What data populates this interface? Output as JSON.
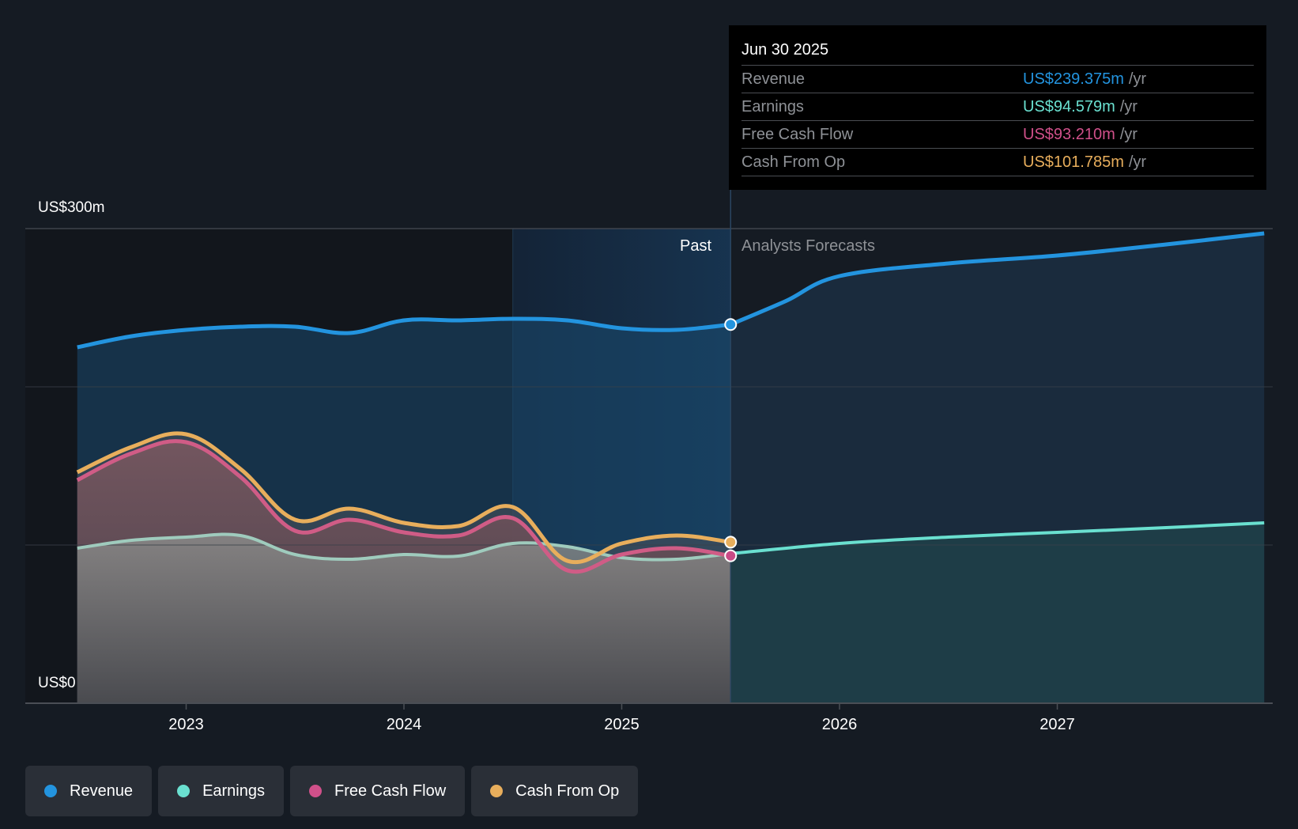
{
  "tooltip": {
    "date": "Jun 30 2025",
    "rows": [
      {
        "name": "Revenue",
        "value": "US$239.375m",
        "unit": "/yr",
        "color": "#2394df"
      },
      {
        "name": "Earnings",
        "value": "US$94.579m",
        "unit": "/yr",
        "color": "#6ae0d0"
      },
      {
        "name": "Free Cash Flow",
        "value": "US$93.210m",
        "unit": "/yr",
        "color": "#d0508a"
      },
      {
        "name": "Cash From Op",
        "value": "US$101.785m",
        "unit": "/yr",
        "color": "#e8ae5c"
      }
    ]
  },
  "regions": {
    "past": "Past",
    "forecast": "Analysts Forecasts"
  },
  "legend": [
    {
      "label": "Revenue",
      "color": "#2394df"
    },
    {
      "label": "Earnings",
      "color": "#6ae0d0"
    },
    {
      "label": "Free Cash Flow",
      "color": "#d0508a"
    },
    {
      "label": "Cash From Op",
      "color": "#e8ae5c"
    }
  ],
  "chart_data": {
    "type": "area",
    "title": "",
    "xlabel": "",
    "ylabel": "",
    "y_tick_labels": [
      "US$0",
      "US$300m"
    ],
    "ylim": [
      0,
      300
    ],
    "xlim": [
      2022.35,
      2027.95
    ],
    "x_ticks": [
      2023,
      2024,
      2025,
      2026,
      2027
    ],
    "x_tick_labels": [
      "2023",
      "2024",
      "2025",
      "2026",
      "2027"
    ],
    "gridlines_y": [
      0,
      100,
      200,
      300
    ],
    "past_forecast_split": 2025.5,
    "highlight_band_start": 2024.5,
    "series": [
      {
        "name": "Revenue",
        "color": "#2394df",
        "points": [
          [
            2022.5,
            225
          ],
          [
            2022.75,
            232
          ],
          [
            2023.0,
            236
          ],
          [
            2023.25,
            238
          ],
          [
            2023.5,
            238
          ],
          [
            2023.75,
            234
          ],
          [
            2024.0,
            242
          ],
          [
            2024.25,
            242
          ],
          [
            2024.5,
            243
          ],
          [
            2024.75,
            242
          ],
          [
            2025.0,
            237
          ],
          [
            2025.25,
            236
          ],
          [
            2025.5,
            239.375
          ]
        ],
        "forecast": [
          [
            2025.5,
            239.375
          ],
          [
            2025.75,
            254
          ],
          [
            2026.0,
            270
          ],
          [
            2026.5,
            278
          ],
          [
            2027.0,
            283
          ],
          [
            2027.5,
            290
          ],
          [
            2027.95,
            297
          ]
        ]
      },
      {
        "name": "Earnings",
        "color": "#6ae0d0",
        "points": [
          [
            2022.5,
            98
          ],
          [
            2022.75,
            103
          ],
          [
            2023.0,
            105
          ],
          [
            2023.25,
            106
          ],
          [
            2023.5,
            94
          ],
          [
            2023.75,
            91
          ],
          [
            2024.0,
            94
          ],
          [
            2024.25,
            93
          ],
          [
            2024.5,
            101
          ],
          [
            2024.75,
            99
          ],
          [
            2025.0,
            92
          ],
          [
            2025.25,
            91
          ],
          [
            2025.5,
            94.579
          ]
        ],
        "forecast": [
          [
            2025.5,
            94.579
          ],
          [
            2026.0,
            101
          ],
          [
            2026.5,
            105
          ],
          [
            2027.0,
            108
          ],
          [
            2027.5,
            111
          ],
          [
            2027.95,
            114
          ]
        ]
      },
      {
        "name": "Free Cash Flow",
        "color": "#d0508a",
        "points": [
          [
            2022.5,
            141
          ],
          [
            2022.75,
            158
          ],
          [
            2023.0,
            165
          ],
          [
            2023.25,
            143
          ],
          [
            2023.5,
            109
          ],
          [
            2023.75,
            116
          ],
          [
            2024.0,
            108
          ],
          [
            2024.25,
            106
          ],
          [
            2024.5,
            117
          ],
          [
            2024.75,
            84
          ],
          [
            2025.0,
            94
          ],
          [
            2025.25,
            98
          ],
          [
            2025.5,
            93.21
          ]
        ]
      },
      {
        "name": "Cash From Op",
        "color": "#e8ae5c",
        "points": [
          [
            2022.5,
            146
          ],
          [
            2022.75,
            162
          ],
          [
            2023.0,
            170
          ],
          [
            2023.25,
            148
          ],
          [
            2023.5,
            116
          ],
          [
            2023.75,
            123
          ],
          [
            2024.0,
            114
          ],
          [
            2024.25,
            112
          ],
          [
            2024.5,
            124
          ],
          [
            2024.75,
            90
          ],
          [
            2025.0,
            101
          ],
          [
            2025.25,
            106
          ],
          [
            2025.5,
            101.785
          ]
        ]
      }
    ]
  }
}
